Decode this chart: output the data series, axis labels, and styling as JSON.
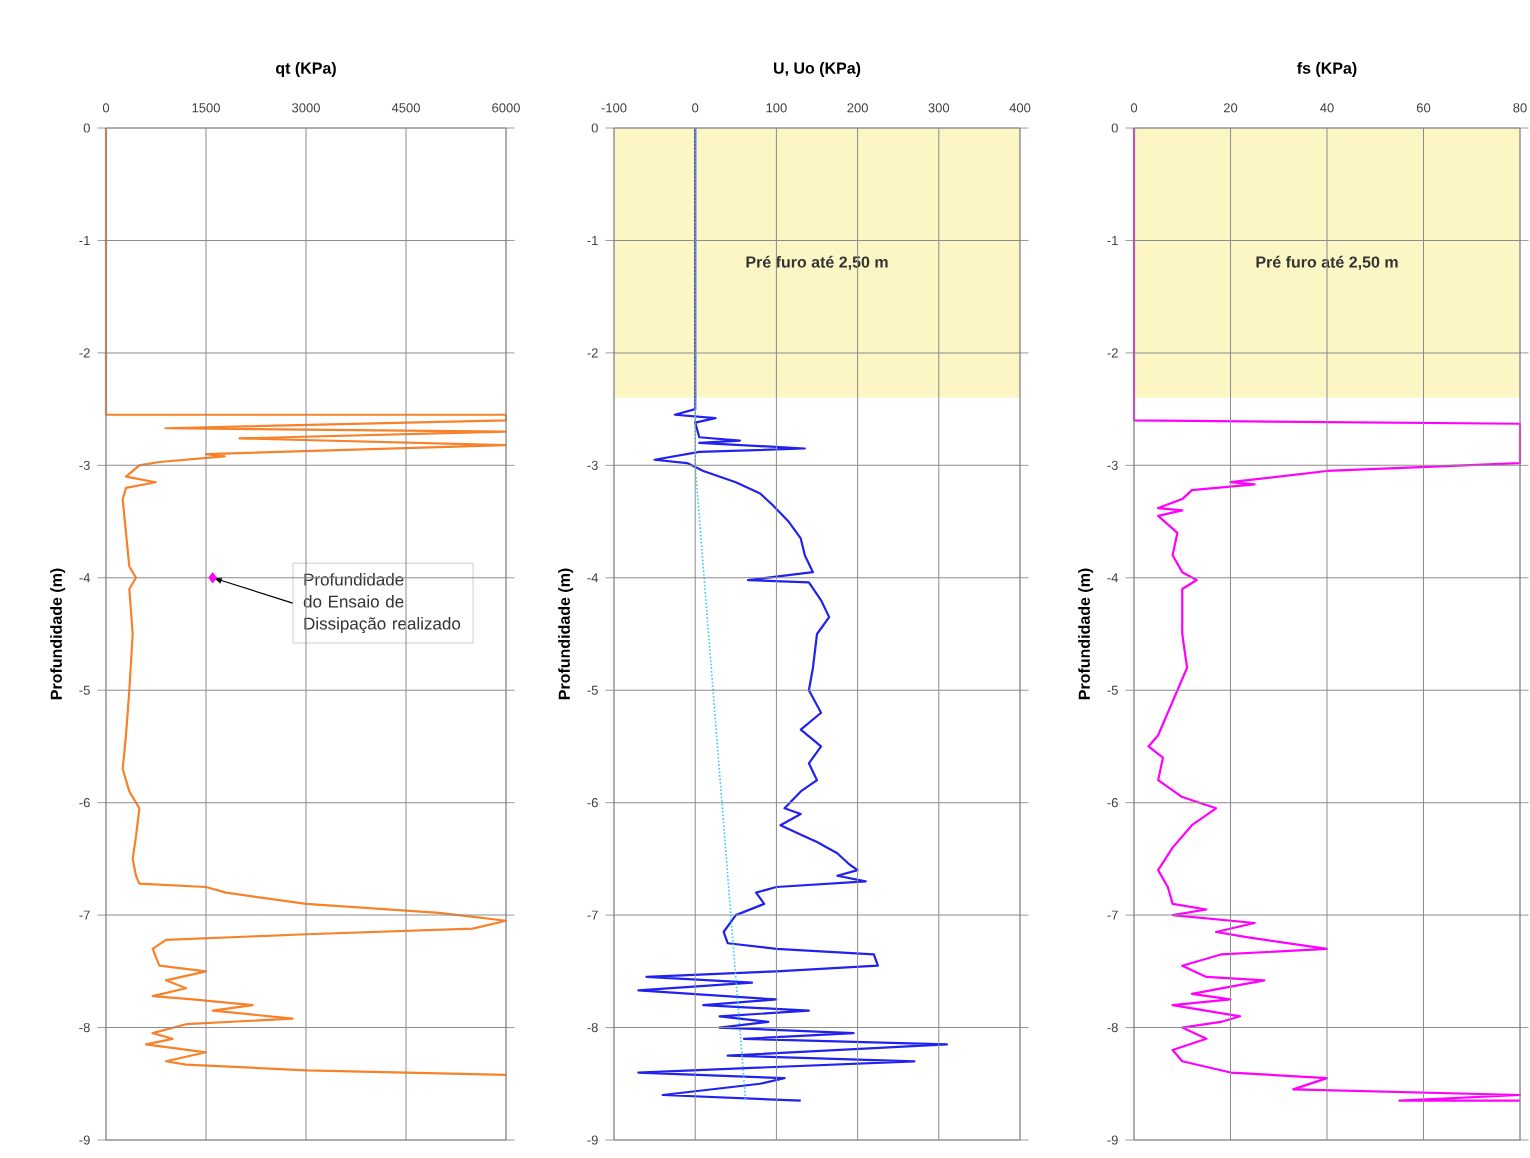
{
  "chart_data": [
    {
      "type": "line",
      "title": "qt (KPa)",
      "ylabel": "Profundidade (m)",
      "xlim": [
        0,
        6000
      ],
      "xticks": [
        0,
        1500,
        3000,
        4500,
        6000
      ],
      "ylim": [
        -9,
        0
      ],
      "yticks": [
        0,
        -1,
        -2,
        -3,
        -4,
        -5,
        -6,
        -7,
        -8,
        -9
      ],
      "grid": true,
      "annotations": [
        {
          "text": "Profundidade do Ensaio de Dissipação realizado",
          "x": 1600,
          "y": -4
        }
      ],
      "series": [
        {
          "color": "#f7822a",
          "x": [
            0,
            0,
            6000,
            6000,
            890,
            6000,
            2000,
            6000,
            1500,
            1780,
            800,
            500,
            300,
            745,
            300,
            250,
            350,
            450,
            350,
            400,
            350,
            300,
            250,
            350,
            500,
            450,
            400,
            450,
            500,
            1500,
            1800,
            3000,
            5000,
            6000,
            5500,
            3000,
            900,
            700,
            800,
            1500,
            900,
            1200,
            700,
            1300,
            2200,
            1600,
            2800,
            1200,
            700,
            1000,
            600,
            1500,
            900,
            1200,
            3000,
            6000
          ],
          "values": [
            0,
            -2.55,
            -2.55,
            -2.6,
            -2.67,
            -2.7,
            -2.76,
            -2.82,
            -2.9,
            -2.92,
            -2.97,
            -3.0,
            -3.1,
            -3.15,
            -3.2,
            -3.3,
            -3.9,
            -4.0,
            -4.1,
            -4.5,
            -5.0,
            -5.4,
            -5.7,
            -5.9,
            -6.05,
            -6.3,
            -6.5,
            -6.65,
            -6.72,
            -6.75,
            -6.8,
            -6.9,
            -6.98,
            -7.05,
            -7.12,
            -7.17,
            -7.22,
            -7.3,
            -7.45,
            -7.5,
            -7.58,
            -7.65,
            -7.72,
            -7.75,
            -7.8,
            -7.85,
            -7.92,
            -7.97,
            -8.05,
            -8.1,
            -8.15,
            -8.22,
            -8.3,
            -8.33,
            -8.38,
            -8.42
          ]
        },
        {
          "type": "scatter",
          "marker": "diamond",
          "color": "#ff00ff",
          "x": [
            1600
          ],
          "values": [
            -4
          ]
        }
      ]
    },
    {
      "type": "line",
      "title": "U, Uo (KPa)",
      "ylabel": "Profundidade (m)",
      "xlim": [
        -100,
        400
      ],
      "xticks": [
        -100,
        0,
        100,
        200,
        300,
        400
      ],
      "ylim": [
        -9,
        0
      ],
      "yticks": [
        0,
        -1,
        -2,
        -3,
        -4,
        -5,
        -6,
        -7,
        -8,
        -9
      ],
      "grid": true,
      "bands": [
        {
          "axis": "y",
          "from": -2.4,
          "to": 0,
          "label": "Pré furo até 2,50 m",
          "color": "#fbf6c4"
        }
      ],
      "series": [
        {
          "color": "#2222ee",
          "x": [
            0,
            0,
            -25,
            25,
            0,
            5,
            55,
            5,
            135,
            5,
            -50,
            -10,
            10,
            50,
            80,
            95,
            115,
            130,
            135,
            145,
            65,
            140,
            155,
            165,
            150,
            145,
            140,
            155,
            130,
            155,
            140,
            150,
            130,
            110,
            130,
            105,
            135,
            150,
            175,
            190,
            200,
            175,
            210,
            100,
            75,
            85,
            50,
            35,
            40,
            100,
            220,
            225,
            100,
            -60,
            70,
            -70,
            100,
            10,
            140,
            30,
            90,
            30,
            195,
            60,
            310,
            40,
            270,
            -70,
            110,
            80,
            -40,
            130
          ],
          "values": [
            0,
            -2.5,
            -2.55,
            -2.58,
            -2.62,
            -2.75,
            -2.78,
            -2.8,
            -2.85,
            -2.88,
            -2.95,
            -2.98,
            -3.05,
            -3.15,
            -3.25,
            -3.35,
            -3.5,
            -3.65,
            -3.8,
            -3.95,
            -4.02,
            -4.04,
            -4.2,
            -4.35,
            -4.5,
            -4.8,
            -5.0,
            -5.2,
            -5.35,
            -5.5,
            -5.65,
            -5.8,
            -5.9,
            -6.05,
            -6.1,
            -6.2,
            -6.3,
            -6.35,
            -6.45,
            -6.55,
            -6.6,
            -6.65,
            -6.7,
            -6.75,
            -6.8,
            -6.9,
            -7.0,
            -7.15,
            -7.25,
            -7.3,
            -7.35,
            -7.45,
            -7.5,
            -7.55,
            -7.6,
            -7.67,
            -7.75,
            -7.8,
            -7.85,
            -7.9,
            -7.95,
            -8.0,
            -8.05,
            -8.1,
            -8.15,
            -8.25,
            -8.3,
            -8.4,
            -8.45,
            -8.5,
            -8.6,
            -8.65
          ]
        },
        {
          "color": "#33ccff",
          "line_style": "dotted",
          "x": [
            0,
            0,
            62
          ],
          "values": [
            0,
            -3,
            -8.65
          ]
        }
      ]
    },
    {
      "type": "line",
      "title": "fs (KPa)",
      "ylabel": "Profundidade (m)",
      "xlim": [
        0,
        80
      ],
      "xticks": [
        0,
        20,
        40,
        60,
        80
      ],
      "ylim": [
        -9,
        0
      ],
      "yticks": [
        0,
        -1,
        -2,
        -3,
        -4,
        -5,
        -6,
        -7,
        -8,
        -9
      ],
      "grid": true,
      "bands": [
        {
          "axis": "y",
          "from": -2.4,
          "to": 0,
          "label": "Pré furo até 2,50 m",
          "color": "#fbf6c4"
        }
      ],
      "series": [
        {
          "color": "#ff00ff",
          "x": [
            0,
            0,
            80,
            80,
            40,
            20,
            25,
            12,
            10,
            5,
            10,
            5,
            9,
            8,
            10,
            13,
            10,
            10,
            11,
            9,
            7,
            5,
            3,
            6,
            5,
            10,
            17,
            12,
            8,
            5,
            7,
            8,
            15,
            8,
            25,
            17,
            24,
            40,
            18,
            10,
            15,
            27,
            12,
            20,
            8,
            22,
            18,
            10,
            15,
            8,
            10,
            20,
            40,
            33,
            80,
            55,
            80
          ],
          "values": [
            0,
            -2.6,
            -2.63,
            -2.98,
            -3.05,
            -3.15,
            -3.17,
            -3.22,
            -3.3,
            -3.38,
            -3.4,
            -3.45,
            -3.6,
            -3.8,
            -3.95,
            -4.02,
            -4.1,
            -4.5,
            -4.8,
            -5.0,
            -5.2,
            -5.4,
            -5.5,
            -5.6,
            -5.8,
            -5.95,
            -6.05,
            -6.2,
            -6.4,
            -6.6,
            -6.75,
            -6.9,
            -6.95,
            -7.0,
            -7.07,
            -7.15,
            -7.2,
            -7.3,
            -7.35,
            -7.45,
            -7.55,
            -7.58,
            -7.7,
            -7.75,
            -7.8,
            -7.9,
            -7.95,
            -8.0,
            -8.1,
            -8.2,
            -8.3,
            -8.4,
            -8.45,
            -8.55,
            -8.6,
            -8.65,
            -8.65
          ]
        }
      ]
    }
  ]
}
